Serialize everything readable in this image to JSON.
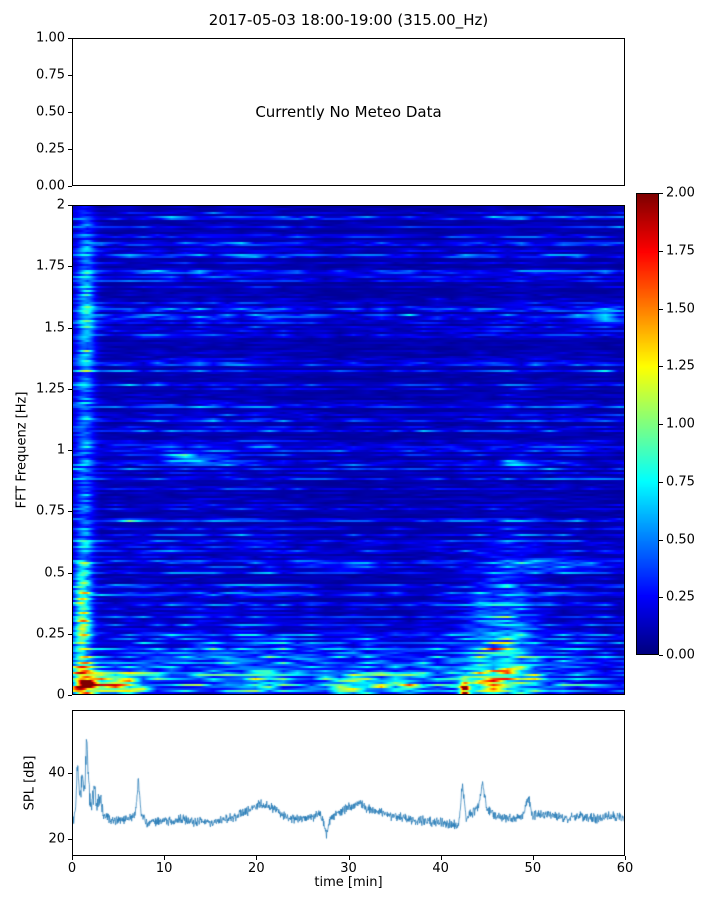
{
  "title": "2017-05-03 18:00-19:00 (315.00_Hz)",
  "colors": {
    "accent_line": "#1f77b4",
    "axis": "#000000",
    "background": "#ffffff"
  },
  "chart_data": [
    {
      "type": "other",
      "panel": "meteo",
      "annotation": "Currently No Meteo Data",
      "ylim": [
        0,
        1
      ],
      "yticks": [
        "1.00",
        "0.75",
        "0.50",
        "0.25",
        "0.00"
      ],
      "xlim": [
        0,
        1
      ],
      "grid": false
    },
    {
      "type": "heatmap",
      "panel": "spectrogram",
      "ylabel": "FFT Frequenz [Hz]",
      "ylim": [
        0,
        2
      ],
      "yticks": [
        "2",
        "1.75",
        "1.5",
        "1.25",
        "1",
        "0.75",
        "0.5",
        "0.25",
        "0"
      ],
      "xlim": [
        0,
        60
      ],
      "colormap": "jet",
      "vmin": 0,
      "vmax": 2,
      "colorbar_ticks": [
        "2.00",
        "1.75",
        "1.50",
        "1.25",
        "1.00",
        "0.75",
        "0.50",
        "0.25",
        "0.00"
      ],
      "seed": 1234,
      "noise": {
        "row_base": 0.05,
        "row_var": 0.27,
        "x_step": 14,
        "low_freq_boost": 0.09,
        "low_freq_width": 0.3
      },
      "features": [
        {
          "t": 1.2,
          "f": 1.0,
          "dt": 1.1,
          "df": 1.2,
          "amp": 0.35
        },
        {
          "t": 1.0,
          "f": 0.32,
          "dt": 0.9,
          "df": 0.22,
          "amp": 0.85
        },
        {
          "t": 1.2,
          "f": 0.05,
          "dt": 1.3,
          "df": 0.06,
          "amp": 1.2
        },
        {
          "t": 4.5,
          "f": 0.04,
          "dt": 3.2,
          "df": 0.05,
          "amp": 1.05
        },
        {
          "t": 31,
          "f": 0.03,
          "dt": 4.0,
          "df": 0.04,
          "amp": 0.7
        },
        {
          "t": 36.5,
          "f": 0.03,
          "dt": 1.8,
          "df": 0.04,
          "amp": 0.45
        },
        {
          "t": 20,
          "f": 0.04,
          "dt": 2.2,
          "df": 0.05,
          "amp": 0.45
        },
        {
          "t": 46,
          "f": 0.05,
          "dt": 3.8,
          "df": 0.06,
          "amp": 0.85
        },
        {
          "t": 42.6,
          "f": 0.02,
          "dt": 0.5,
          "df": 0.035,
          "amp": 1.55
        },
        {
          "t": 46.5,
          "f": 0.25,
          "dt": 3.5,
          "df": 0.3,
          "amp": 0.38
        },
        {
          "t": 12.5,
          "f": 0.97,
          "dt": 3.5,
          "df": 0.02,
          "amp": 0.5
        },
        {
          "t": 48,
          "f": 0.95,
          "dt": 1.5,
          "df": 0.02,
          "amp": 0.35
        },
        {
          "t": 29,
          "f": 0.53,
          "dt": 5,
          "df": 0.02,
          "amp": 0.3
        },
        {
          "t": 53,
          "f": 0.53,
          "dt": 6,
          "df": 0.025,
          "amp": 0.33
        },
        {
          "t": 58,
          "f": 1.55,
          "dt": 2.5,
          "df": 0.04,
          "amp": 0.3
        },
        {
          "t": 30,
          "f": 0.12,
          "dt": 26,
          "df": 0.11,
          "amp": 0.22
        },
        {
          "t": 1.5,
          "f": 1.6,
          "dt": 0.9,
          "df": 0.35,
          "amp": 0.3
        }
      ]
    },
    {
      "type": "line",
      "panel": "spl",
      "ylabel": "SPL [dB]",
      "xlabel": "time [min]",
      "ylim": [
        15,
        58.8
      ],
      "yticks": [
        "40",
        "20"
      ],
      "xlim": [
        0,
        60
      ],
      "xticks": [
        "0",
        "10",
        "20",
        "30",
        "40",
        "50",
        "60"
      ],
      "series": [
        {
          "name": "SPL",
          "color": "#1f77b4"
        }
      ],
      "seed": 99,
      "noise": {
        "base": 1.7,
        "boost_amp": 2.6,
        "boost_t": 1.6,
        "boost_w": 1.6
      },
      "profile": [
        [
          0,
          26
        ],
        [
          0.3,
          30
        ],
        [
          0.5,
          44
        ],
        [
          0.7,
          32
        ],
        [
          1,
          38
        ],
        [
          1.3,
          34
        ],
        [
          1.5,
          52
        ],
        [
          1.7,
          36
        ],
        [
          2,
          30
        ],
        [
          2.3,
          35
        ],
        [
          2.6,
          29
        ],
        [
          3,
          33
        ],
        [
          3.3,
          27
        ],
        [
          4,
          26
        ],
        [
          5,
          25.5
        ],
        [
          6,
          26
        ],
        [
          6.8,
          27
        ],
        [
          7.1,
          38
        ],
        [
          7.4,
          28
        ],
        [
          8,
          25
        ],
        [
          9,
          25
        ],
        [
          10,
          25.5
        ],
        [
          11,
          25
        ],
        [
          12,
          26
        ],
        [
          13,
          25
        ],
        [
          14,
          25.5
        ],
        [
          15,
          25
        ],
        [
          16,
          25.5
        ],
        [
          17,
          26
        ],
        [
          18,
          27
        ],
        [
          19,
          28.5
        ],
        [
          20,
          30
        ],
        [
          20.5,
          30.5
        ],
        [
          21,
          30
        ],
        [
          22,
          29
        ],
        [
          23,
          27
        ],
        [
          24,
          26
        ],
        [
          25,
          26
        ],
        [
          26,
          26.5
        ],
        [
          27,
          27.5
        ],
        [
          27.6,
          21.5
        ],
        [
          28,
          26
        ],
        [
          28.5,
          27
        ],
        [
          29,
          28
        ],
        [
          30,
          29.5
        ],
        [
          31,
          30.5
        ],
        [
          31.5,
          30
        ],
        [
          32,
          29
        ],
        [
          33,
          28.5
        ],
        [
          34,
          27.5
        ],
        [
          35,
          26.5
        ],
        [
          36,
          26.5
        ],
        [
          37,
          25.5
        ],
        [
          38,
          25.5
        ],
        [
          39,
          25
        ],
        [
          40,
          25
        ],
        [
          41,
          24.5
        ],
        [
          42,
          24
        ],
        [
          42.4,
          36.5
        ],
        [
          42.8,
          26
        ],
        [
          43.5,
          28
        ],
        [
          44.2,
          30
        ],
        [
          44.6,
          38
        ],
        [
          45,
          29
        ],
        [
          45.5,
          28
        ],
        [
          46,
          27
        ],
        [
          47,
          26.5
        ],
        [
          48,
          26
        ],
        [
          49,
          27
        ],
        [
          49.6,
          33
        ],
        [
          50,
          27
        ],
        [
          51,
          27.5
        ],
        [
          52,
          27
        ],
        [
          53,
          26.5
        ],
        [
          54,
          26
        ],
        [
          55,
          27
        ],
        [
          56,
          26.5
        ],
        [
          57,
          26
        ],
        [
          58,
          26.5
        ],
        [
          59,
          27
        ],
        [
          60,
          26
        ]
      ]
    }
  ]
}
